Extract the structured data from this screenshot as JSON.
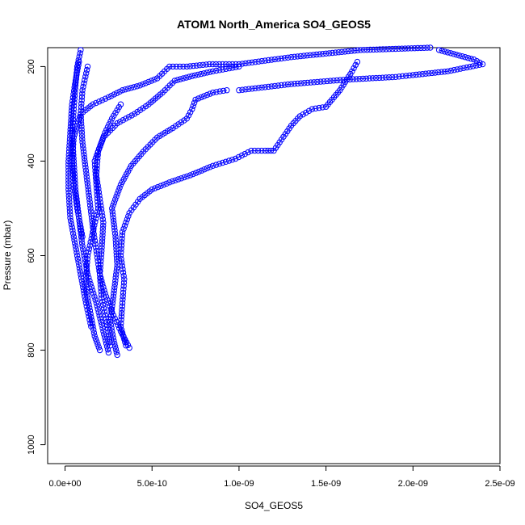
{
  "chart_data": {
    "type": "scatter",
    "title": "ATOM1 North_America SO4_GEOS5",
    "xlabel": "SO4_GEOS5",
    "ylabel": "Pressure (mbar)",
    "xlim": [
      -1e-10,
      2.5e-09
    ],
    "ylim": [
      1040,
      160
    ],
    "y_reversed": true,
    "grid": false,
    "series_color": "#0000ff",
    "marker": "open-circle",
    "x_ticks": [
      {
        "value": 0,
        "label": "0.0e+00"
      },
      {
        "value": 5e-10,
        "label": "5.0e-10"
      },
      {
        "value": 1e-09,
        "label": "1.0e-09"
      },
      {
        "value": 1.5e-09,
        "label": "1.5e-09"
      },
      {
        "value": 2e-09,
        "label": "2.0e-09"
      },
      {
        "value": 2.5e-09,
        "label": "2.5e-09"
      }
    ],
    "y_ticks": [
      {
        "value": 200,
        "label": "200"
      },
      {
        "value": 400,
        "label": "400"
      },
      {
        "value": 600,
        "label": "600"
      },
      {
        "value": 800,
        "label": "800"
      },
      {
        "value": 1000,
        "label": "1000"
      }
    ],
    "series": [
      {
        "values": [
          {
            "x": 2.5e-10,
            "y": 805
          },
          {
            "x": 2.2e-10,
            "y": 760
          },
          {
            "x": 1.8e-10,
            "y": 700
          },
          {
            "x": 1.3e-10,
            "y": 640
          },
          {
            "x": 1e-10,
            "y": 580
          },
          {
            "x": 8e-11,
            "y": 520
          },
          {
            "x": 6e-11,
            "y": 460
          },
          {
            "x": 5e-11,
            "y": 400
          },
          {
            "x": 4e-11,
            "y": 340
          },
          {
            "x": 5e-11,
            "y": 290
          },
          {
            "x": 6e-11,
            "y": 240
          },
          {
            "x": 7e-11,
            "y": 200
          },
          {
            "x": 9e-11,
            "y": 165
          }
        ]
      },
      {
        "values": [
          {
            "x": 3.7e-10,
            "y": 795
          },
          {
            "x": 3.2e-10,
            "y": 760
          },
          {
            "x": 2.7e-10,
            "y": 720
          },
          {
            "x": 2.3e-10,
            "y": 680
          },
          {
            "x": 2e-10,
            "y": 640
          },
          {
            "x": 1.8e-10,
            "y": 590
          },
          {
            "x": 1.6e-10,
            "y": 540
          },
          {
            "x": 1.4e-10,
            "y": 480
          },
          {
            "x": 1.2e-10,
            "y": 420
          },
          {
            "x": 1e-10,
            "y": 360
          },
          {
            "x": 9e-11,
            "y": 300
          },
          {
            "x": 1e-10,
            "y": 250
          },
          {
            "x": 1.3e-10,
            "y": 200
          }
        ]
      },
      {
        "values": [
          {
            "x": 3e-10,
            "y": 810
          },
          {
            "x": 2.8e-10,
            "y": 780
          },
          {
            "x": 2.6e-10,
            "y": 740
          },
          {
            "x": 2.8e-10,
            "y": 680
          },
          {
            "x": 3e-10,
            "y": 620
          },
          {
            "x": 2.9e-10,
            "y": 560
          },
          {
            "x": 2.7e-10,
            "y": 500
          },
          {
            "x": 3.2e-10,
            "y": 450
          },
          {
            "x": 3.8e-10,
            "y": 410
          },
          {
            "x": 4.5e-10,
            "y": 380
          },
          {
            "x": 5.3e-10,
            "y": 350
          },
          {
            "x": 6.2e-10,
            "y": 330
          },
          {
            "x": 7e-10,
            "y": 310
          },
          {
            "x": 7.3e-10,
            "y": 290
          },
          {
            "x": 7.5e-10,
            "y": 270
          },
          {
            "x": 8.5e-10,
            "y": 255
          },
          {
            "x": 9.3e-10,
            "y": 250
          }
        ]
      },
      {
        "values": [
          {
            "x": 2e-10,
            "y": 800
          },
          {
            "x": 1.7e-10,
            "y": 770
          },
          {
            "x": 1.5e-10,
            "y": 730
          },
          {
            "x": 1.3e-10,
            "y": 690
          },
          {
            "x": 1.2e-10,
            "y": 650
          },
          {
            "x": 1.3e-10,
            "y": 600
          },
          {
            "x": 1.6e-10,
            "y": 550
          },
          {
            "x": 1.9e-10,
            "y": 500
          },
          {
            "x": 1.8e-10,
            "y": 450
          },
          {
            "x": 1.7e-10,
            "y": 400
          },
          {
            "x": 2.2e-10,
            "y": 350
          },
          {
            "x": 3e-10,
            "y": 320
          },
          {
            "x": 4e-10,
            "y": 300
          },
          {
            "x": 4.8e-10,
            "y": 280
          },
          {
            "x": 5.6e-10,
            "y": 255
          },
          {
            "x": 6.3e-10,
            "y": 230
          },
          {
            "x": 7.3e-10,
            "y": 220
          },
          {
            "x": 8.5e-10,
            "y": 210
          },
          {
            "x": 1e-09,
            "y": 200
          }
        ]
      },
      {
        "values": [
          {
            "x": 3.5e-10,
            "y": 790
          },
          {
            "x": 3.2e-10,
            "y": 750
          },
          {
            "x": 3.3e-10,
            "y": 700
          },
          {
            "x": 3.4e-10,
            "y": 650
          },
          {
            "x": 3.2e-10,
            "y": 600
          },
          {
            "x": 3.3e-10,
            "y": 550
          },
          {
            "x": 3.7e-10,
            "y": 510
          },
          {
            "x": 4.3e-10,
            "y": 480
          },
          {
            "x": 5e-10,
            "y": 460
          },
          {
            "x": 6e-10,
            "y": 445
          },
          {
            "x": 7.2e-10,
            "y": 430
          },
          {
            "x": 8.5e-10,
            "y": 410
          },
          {
            "x": 9.8e-10,
            "y": 395
          },
          {
            "x": 1.07e-09,
            "y": 378
          },
          {
            "x": 1.15e-09,
            "y": 378
          },
          {
            "x": 1.2e-09,
            "y": 378
          },
          {
            "x": 1.3e-09,
            "y": 325
          },
          {
            "x": 1.35e-09,
            "y": 305
          },
          {
            "x": 1.42e-09,
            "y": 290
          },
          {
            "x": 1.5e-09,
            "y": 285
          },
          {
            "x": 1.58e-09,
            "y": 250
          },
          {
            "x": 1.65e-09,
            "y": 210
          },
          {
            "x": 1.68e-09,
            "y": 190
          }
        ]
      },
      {
        "values": [
          {
            "x": 1e-10,
            "y": 560
          },
          {
            "x": 7e-11,
            "y": 500
          },
          {
            "x": 5e-11,
            "y": 450
          },
          {
            "x": 4e-11,
            "y": 400
          },
          {
            "x": 5e-11,
            "y": 350
          },
          {
            "x": 9e-11,
            "y": 300
          },
          {
            "x": 1.6e-10,
            "y": 280
          },
          {
            "x": 2.5e-10,
            "y": 265
          },
          {
            "x": 3.3e-10,
            "y": 250
          },
          {
            "x": 4.3e-10,
            "y": 240
          },
          {
            "x": 5.3e-10,
            "y": 225
          },
          {
            "x": 6e-10,
            "y": 200
          },
          {
            "x": 7e-10,
            "y": 200
          },
          {
            "x": 8.3e-10,
            "y": 195
          },
          {
            "x": 1e-09,
            "y": 195
          },
          {
            "x": 1.3e-09,
            "y": 180
          },
          {
            "x": 1.7e-09,
            "y": 165
          },
          {
            "x": 2.1e-09,
            "y": 160
          }
        ]
      },
      {
        "values": [
          {
            "x": 1e-09,
            "y": 250
          },
          {
            "x": 1.3e-09,
            "y": 237
          },
          {
            "x": 1.6e-09,
            "y": 228
          },
          {
            "x": 1.9e-09,
            "y": 222
          },
          {
            "x": 2e-09,
            "y": 218
          },
          {
            "x": 2.2e-09,
            "y": 210
          },
          {
            "x": 2.4e-09,
            "y": 195
          },
          {
            "x": 2.35e-09,
            "y": 185
          },
          {
            "x": 2.25e-09,
            "y": 175
          },
          {
            "x": 2.15e-09,
            "y": 165
          }
        ]
      },
      {
        "values": [
          {
            "x": 1.5e-10,
            "y": 750
          },
          {
            "x": 1.2e-10,
            "y": 700
          },
          {
            "x": 9e-11,
            "y": 640
          },
          {
            "x": 6e-11,
            "y": 580
          },
          {
            "x": 3e-11,
            "y": 520
          },
          {
            "x": 2e-11,
            "y": 460
          },
          {
            "x": 2e-11,
            "y": 400
          },
          {
            "x": 3e-11,
            "y": 340
          },
          {
            "x": 4e-11,
            "y": 280
          },
          {
            "x": 6e-11,
            "y": 230
          },
          {
            "x": 8e-11,
            "y": 190
          }
        ]
      },
      {
        "values": [
          {
            "x": 2.6e-10,
            "y": 790
          },
          {
            "x": 2.4e-10,
            "y": 740
          },
          {
            "x": 2.1e-10,
            "y": 690
          },
          {
            "x": 2e-10,
            "y": 640
          },
          {
            "x": 2.1e-10,
            "y": 590
          },
          {
            "x": 2.2e-10,
            "y": 530
          },
          {
            "x": 2e-10,
            "y": 480
          },
          {
            "x": 1.8e-10,
            "y": 430
          },
          {
            "x": 1.9e-10,
            "y": 380
          },
          {
            "x": 2.3e-10,
            "y": 340
          },
          {
            "x": 2.7e-10,
            "y": 310
          },
          {
            "x": 3.2e-10,
            "y": 280
          }
        ]
      }
    ]
  }
}
